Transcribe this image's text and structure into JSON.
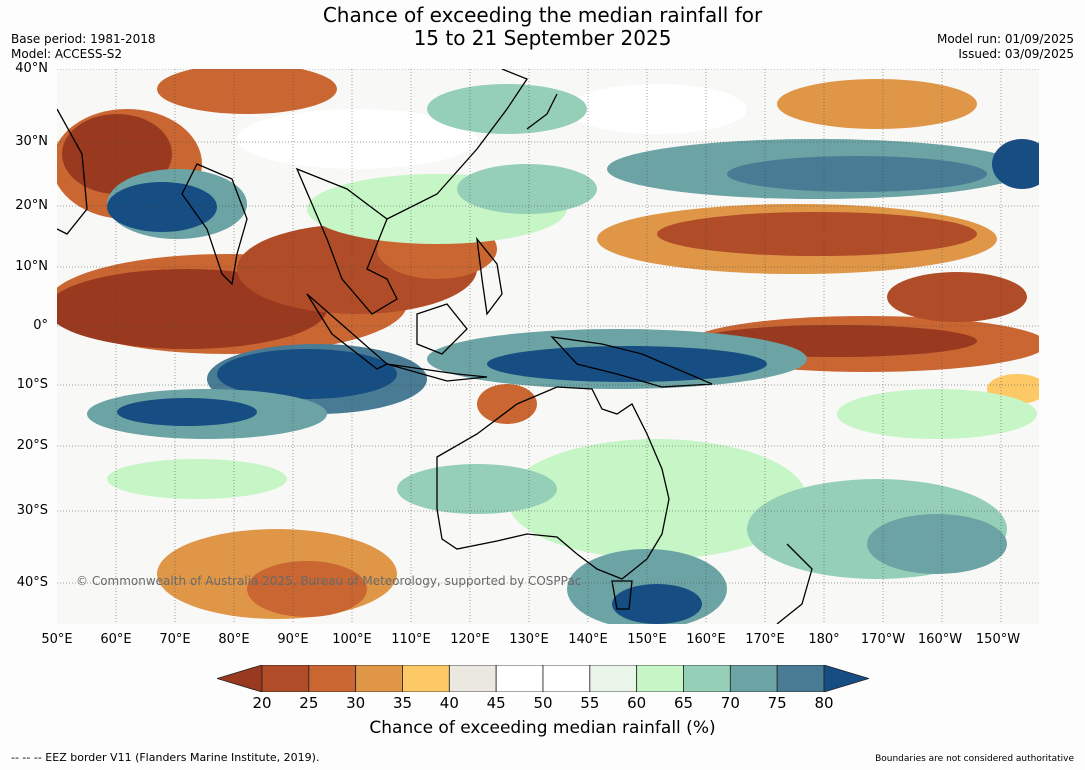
{
  "title_line1": "Chance of exceeding the median rainfall for",
  "title_line2": "15 to 21 September 2025",
  "base_period": "Base period: 1981-2018",
  "model": "Model: ACCESS-S2",
  "model_run": "Model run: 01/09/2025",
  "issued": "Issued: 03/09/2025",
  "lat_labels": [
    "40°N",
    "30°N",
    "20°N",
    "10°N",
    "0°",
    "10°S",
    "20°S",
    "30°S",
    "40°S"
  ],
  "lon_labels": [
    "50°E",
    "60°E",
    "70°E",
    "80°E",
    "90°E",
    "100°E",
    "110°E",
    "120°E",
    "130°E",
    "140°E",
    "150°E",
    "160°E",
    "170°E",
    "180°",
    "170°W",
    "160°W",
    "150°W"
  ],
  "copyright": "© Commonwealth of Australia 2025, Bureau of Meteorology, supported by COSPPac",
  "colorbar": {
    "ticks": [
      "20",
      "25",
      "30",
      "35",
      "40",
      "45",
      "50",
      "55",
      "60",
      "65",
      "70",
      "75",
      "80"
    ],
    "colors": [
      "#99391f",
      "#b04c27",
      "#c96632",
      "#e09647",
      "#fdc866",
      "#ebe8e2",
      "#ffffff",
      "#ffffff",
      "#e8f5e8",
      "#c6f5c6",
      "#95cfb8",
      "#6ca3a4",
      "#4a7b95",
      "#164d82"
    ],
    "label": "Chance of exceeding median rainfall (%)"
  },
  "footer_left": "--  --  -- EEZ border V11 (Flanders Marine Institute, 2019).",
  "footer_right": "Boundaries are not considered authoritative"
}
